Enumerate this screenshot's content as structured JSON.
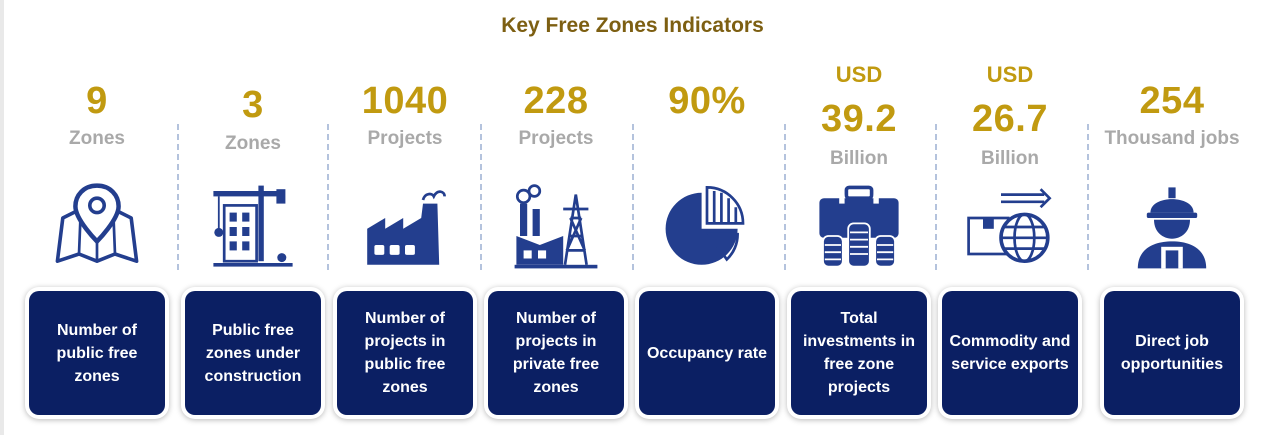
{
  "title": "Key Free Zones Indicators",
  "colors": {
    "title": "#7d5f12",
    "value": "#c19a10",
    "unit": "#a9a9a9",
    "icon": "#233e8e",
    "card": "#0b1f63"
  },
  "indicators": [
    {
      "value": "9",
      "unit": "Zones",
      "label": "Number of public free zones",
      "icon": "map-pin-icon"
    },
    {
      "value": "3",
      "unit": "Zones",
      "label": "Public free zones under construction",
      "icon": "construction-crane-icon"
    },
    {
      "value": "1040",
      "unit": "Projects",
      "label": "Number of projects in public free zones",
      "icon": "factory-icon"
    },
    {
      "value": "228",
      "unit": "Projects",
      "label": "Number of projects in private free zones",
      "icon": "industrial-plant-icon"
    },
    {
      "value": "90%",
      "unit": "",
      "label": "Occupancy rate",
      "icon": "pie-chart-icon"
    },
    {
      "prefix": "USD",
      "value": "39.2",
      "unit": "Billion",
      "label": "Total investments in free zone projects",
      "icon": "briefcase-coins-icon"
    },
    {
      "prefix": "USD",
      "value": "26.7",
      "unit": "Billion",
      "label": "Commodity and service exports",
      "icon": "export-globe-icon"
    },
    {
      "value": "254",
      "unit": "Thousand jobs",
      "label": "Direct job opportunities",
      "icon": "worker-icon"
    }
  ]
}
